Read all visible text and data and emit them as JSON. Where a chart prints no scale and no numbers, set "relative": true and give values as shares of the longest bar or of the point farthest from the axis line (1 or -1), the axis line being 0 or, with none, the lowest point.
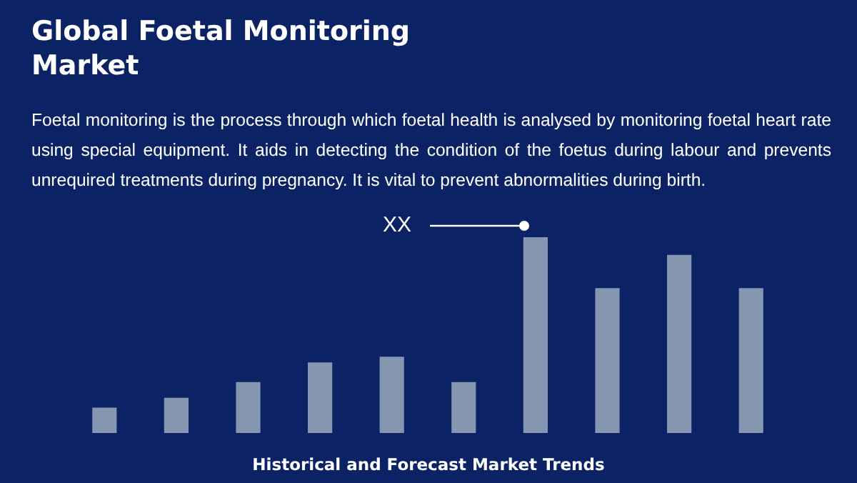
{
  "chart_data": {
    "type": "bar",
    "title": "Global Foetal Monitoring Market",
    "subtitle": "Foetal monitoring is the process through which foetal health is analysed by monitoring foetal heart rate using special equipment. It aids in detecting the condition of the foetus during labour and prevents unrequired treatments during pregnancy. It is vital to prevent abnormalities during birth.",
    "xlabel": "Historical and Forecast Market Trends",
    "annotations": [
      "XX"
    ],
    "relative": true,
    "categories": [
      null,
      null,
      null,
      null,
      null,
      null,
      null,
      null,
      null,
      null
    ],
    "values": [
      0.13,
      0.18,
      0.26,
      0.36,
      0.39,
      0.26,
      1,
      0.74,
      0.91,
      0.74
    ],
    "color": "#8496b0"
  }
}
